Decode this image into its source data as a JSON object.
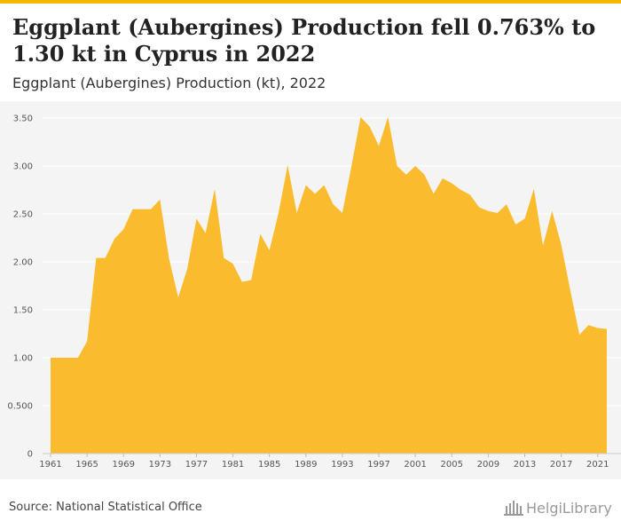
{
  "header": {
    "title": "Eggplant (Aubergines) Production fell 0.763% to 1.30 kt in Cyprus in 2022",
    "subtitle": "Eggplant (Aubergines) Production (kt), 2022"
  },
  "footer": {
    "source": "Source: National Statistical Office",
    "logo_text": "HelgiLibrary"
  },
  "colors": {
    "accent": "#f5b800",
    "area_fill": "#fbbb2e",
    "chart_background": "#f4f4f4",
    "gridline": "#ffffff"
  },
  "chart_data": {
    "type": "area",
    "title": "Eggplant (Aubergines) Production (kt), 2022",
    "xlabel": "",
    "ylabel": "",
    "x": [
      1961,
      1962,
      1963,
      1964,
      1965,
      1966,
      1967,
      1968,
      1969,
      1970,
      1971,
      1972,
      1973,
      1974,
      1975,
      1976,
      1977,
      1978,
      1979,
      1980,
      1981,
      1982,
      1983,
      1984,
      1985,
      1986,
      1987,
      1988,
      1989,
      1990,
      1991,
      1992,
      1993,
      1994,
      1995,
      1996,
      1997,
      1998,
      1999,
      2000,
      2001,
      2002,
      2003,
      2004,
      2005,
      2006,
      2007,
      2008,
      2009,
      2010,
      2011,
      2012,
      2013,
      2014,
      2015,
      2016,
      2017,
      2018,
      2019,
      2020,
      2021,
      2022
    ],
    "series": [
      {
        "name": "",
        "values": [
          1.0,
          1.0,
          1.0,
          1.0,
          1.17,
          2.04,
          2.04,
          2.24,
          2.34,
          2.55,
          2.55,
          2.55,
          2.65,
          2.03,
          1.63,
          1.93,
          2.45,
          2.3,
          2.76,
          2.04,
          1.98,
          1.79,
          1.81,
          2.29,
          2.12,
          2.51,
          3.01,
          2.51,
          2.8,
          2.71,
          2.8,
          2.6,
          2.51,
          3.0,
          3.51,
          3.41,
          3.21,
          3.51,
          3.0,
          2.91,
          3.0,
          2.91,
          2.71,
          2.87,
          2.82,
          2.75,
          2.7,
          2.57,
          2.53,
          2.51,
          2.6,
          2.39,
          2.45,
          2.76,
          2.17,
          2.53,
          2.18,
          1.7,
          1.24,
          1.34,
          1.31,
          1.3
        ]
      }
    ],
    "ylim": [
      0,
      3.5
    ],
    "yticks": [
      0,
      0.5,
      1.0,
      1.5,
      2.0,
      2.5,
      3.0,
      3.5
    ],
    "ytick_labels": [
      "0",
      "0.500",
      "1.00",
      "1.50",
      "2.00",
      "2.50",
      "3.00",
      "3.50"
    ],
    "xticks": [
      1961,
      1965,
      1969,
      1973,
      1977,
      1981,
      1985,
      1989,
      1993,
      1997,
      2001,
      2005,
      2009,
      2013,
      2017,
      2021
    ],
    "xtick_labels": [
      "1961",
      "1965",
      "1969",
      "1973",
      "1977",
      "1981",
      "1985",
      "1989",
      "1993",
      "1997",
      "2001",
      "2005",
      "2009",
      "2013",
      "2017",
      "2021"
    ],
    "grid": true,
    "legend": "none"
  }
}
